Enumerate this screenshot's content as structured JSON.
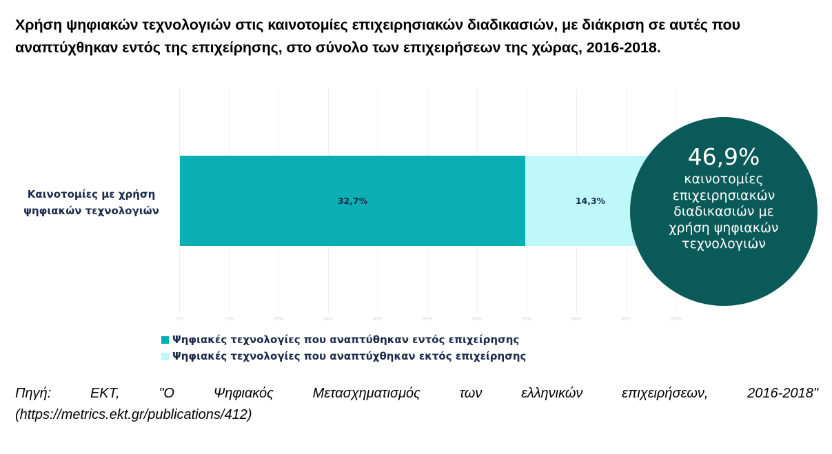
{
  "title": "Χρήση ψηφιακών τεχνολογιών στις καινοτομίες επιχειρησιακών διαδικασιών, με διάκριση σε αυτές που αναπτύχθηκαν εντός της επιχείρησης, στο σύνολο των επιχειρήσεων της χώρας, 2016-2018.",
  "category_label": "Καινοτομίες με χρήση ψηφιακών τεχνολογιών",
  "bars": [
    {
      "label": "32,7%",
      "color": "#0aafb4"
    },
    {
      "label": "14,3%",
      "color": "#bff8fa"
    }
  ],
  "ticks": [
    "0%",
    "10%",
    "20%",
    "30%",
    "40%",
    "50%",
    "60%",
    "70%",
    "80%",
    "90%",
    "100%"
  ],
  "bubble": {
    "value": "46,9%",
    "text": "καινοτομίες επιχειρησιακών διαδικασιών με χρήση ψηφιακών τεχνολογιών",
    "color": "#0b5a5a"
  },
  "legend": [
    {
      "label": "Ψηφιακές τεχνολογίες που αναπτύθηκαν εντός επιχείρησης",
      "color": "#0aafb4"
    },
    {
      "label": "Ψηφιακές τεχνολογίες που αναπτύχθηκαν εκτός επιχείρησης",
      "color": "#bff8fa"
    }
  ],
  "source": {
    "words": [
      "Πηγή:",
      "ΕΚΤ,",
      "\"Ο",
      "Ψηφιακός",
      "Μετασχηματισμός",
      "των",
      "ελληνικών",
      "επιχειρήσεων,",
      "2016-2018\""
    ],
    "line2": "(https://metrics.ekt.gr/publications/412)"
  },
  "chart_data": {
    "type": "bar",
    "orientation": "horizontal",
    "stacked": true,
    "title": "Χρήση ψηφιακών τεχνολογιών στις καινοτομίες επιχειρησιακών διαδικασιών, με διάκριση σε αυτές που αναπτύχθηκαν εντός της επιχείρησης, στο σύνολο των επιχειρήσεων της χώρας, 2016-2018.",
    "categories": [
      "Καινοτομίες με χρήση ψηφιακών τεχνολογιών"
    ],
    "series": [
      {
        "name": "Ψηφιακές τεχνολογίες που αναπτύθηκαν εντός επιχείρησης",
        "values": [
          32.7
        ],
        "color": "#0aafb4"
      },
      {
        "name": "Ψηφιακές τεχνολογίες που αναπτύχθηκαν εκτός επιχείρησης",
        "values": [
          14.3
        ],
        "color": "#bff8fa"
      }
    ],
    "total": 46.9,
    "annotation": "46,9% καινοτομίες επιχειρησιακών διαδικασιών με χρήση ψηφιακών τεχνολογιών",
    "xlabel": "",
    "ylabel": "",
    "xticks": [
      "0%",
      "10%",
      "20%",
      "30%",
      "40%",
      "50%",
      "60%",
      "70%",
      "80%",
      "90%",
      "100%"
    ],
    "xlim": [
      0,
      100
    ],
    "normalized_to_total": true,
    "grid": true,
    "legend_position": "bottom"
  }
}
